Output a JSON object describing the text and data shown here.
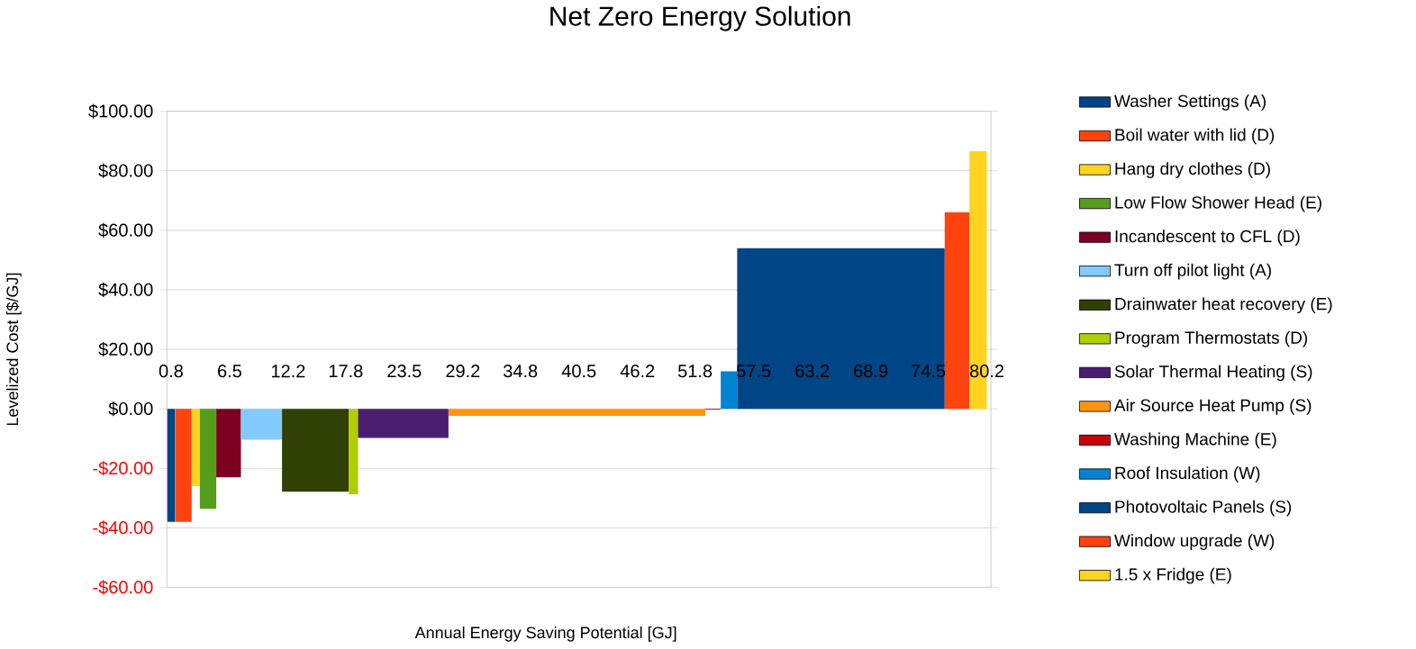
{
  "chart_data": {
    "type": "area",
    "title": "Net Zero Energy Solution",
    "xlabel": "Annual Energy Saving Potential [GJ]",
    "ylabel": "Levelized Cost [$/GJ]",
    "xlim": [
      0.4,
      80.6
    ],
    "xticks": [
      0.8,
      6.5,
      12.2,
      17.8,
      23.5,
      29.2,
      34.8,
      40.5,
      46.2,
      51.8,
      57.5,
      63.2,
      68.9,
      74.5,
      80.2
    ],
    "ylim": [
      -60,
      100
    ],
    "yticks": [
      {
        "value": -60,
        "label": "-$60.00"
      },
      {
        "value": -40,
        "label": "-$40.00"
      },
      {
        "value": -20,
        "label": "-$20.00"
      },
      {
        "value": 0,
        "label": "$0.00"
      },
      {
        "value": 20,
        "label": "$20.00"
      },
      {
        "value": 40,
        "label": "$40.00"
      },
      {
        "value": 60,
        "label": "$60.00"
      },
      {
        "value": 80,
        "label": "$80.00"
      },
      {
        "value": 100,
        "label": "$100.00"
      }
    ],
    "grid": "y",
    "legend": "right",
    "series": [
      {
        "name": "Washer Settings (A)",
        "color": "#004586",
        "x": [
          0.4,
          1.2
        ],
        "values": [
          -38,
          -38
        ]
      },
      {
        "name": "Boil water with lid (D)",
        "color": "#ff420e",
        "x": [
          1.2,
          2.8
        ],
        "values": [
          -38,
          -38
        ]
      },
      {
        "name": "Hang dry clothes (D)",
        "color": "#ffd320",
        "x": [
          2.8,
          3.6
        ],
        "values": [
          -26,
          -26
        ]
      },
      {
        "name": "Low Flow Shower Head (E)",
        "color": "#579d1c",
        "x": [
          3.6,
          5.2
        ],
        "values": [
          -33.6,
          -33.6
        ]
      },
      {
        "name": "Incandescent to CFL (D)",
        "color": "#7e0021",
        "x": [
          5.2,
          7.6
        ],
        "values": [
          -23,
          -23
        ]
      },
      {
        "name": "Turn off pilot light (A)",
        "color": "#83caff",
        "x": [
          7.6,
          11.6
        ],
        "values": [
          -10.4,
          -10.4
        ]
      },
      {
        "name": "Drainwater heat recovery (E)",
        "color": "#314004",
        "x": [
          11.6,
          18.1
        ],
        "values": [
          -27.9,
          -27.9
        ]
      },
      {
        "name": "Program Thermostats (D)",
        "color": "#aecf00",
        "x": [
          18.1,
          19
        ],
        "values": [
          -28.7,
          -28.7
        ]
      },
      {
        "name": "Solar Thermal Heating (S)",
        "color": "#4b1f6f",
        "x": [
          19,
          27.8
        ],
        "values": [
          -9.8,
          -9.8
        ]
      },
      {
        "name": "Air Source Heat Pump (S)",
        "color": "#ff950e",
        "x": [
          27.8,
          52.8
        ],
        "values": [
          -2.4,
          -2.4
        ]
      },
      {
        "name": "Washing Machine (E)",
        "color": "#c5000b",
        "x": [
          52.8,
          54.3
        ],
        "values": [
          -0.3,
          -0.3
        ]
      },
      {
        "name": "Roof Insulation (W)",
        "color": "#0084d1",
        "x": [
          54.3,
          55.9
        ],
        "values": [
          12.6,
          12.6
        ]
      },
      {
        "name": "Photovoltaic Panels (S)",
        "color": "#004586",
        "x": [
          55.9,
          76.1
        ],
        "values": [
          54,
          54
        ]
      },
      {
        "name": "Window upgrade (W)",
        "color": "#ff420e",
        "x": [
          76.1,
          78.5
        ],
        "values": [
          66.1,
          66.1
        ]
      },
      {
        "name": "1.5 x Fridge (E)",
        "color": "#ffd320",
        "x": [
          78.5,
          80.2
        ],
        "values": [
          86.6,
          86.6
        ]
      }
    ]
  }
}
